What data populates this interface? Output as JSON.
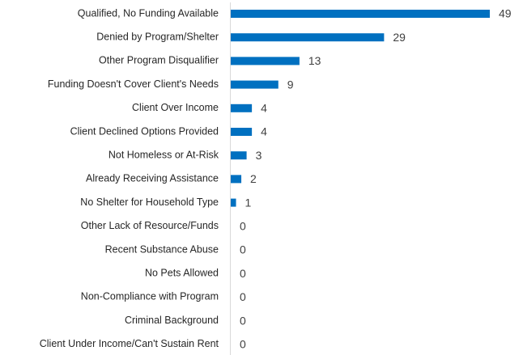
{
  "chart_data": {
    "type": "bar",
    "orientation": "horizontal",
    "categories": [
      "Qualified, No Funding Available",
      "Denied by Program/Shelter",
      "Other Program Disqualifier",
      "Funding Doesn't Cover Client's Needs",
      "Client Over Income",
      "Client Declined Options Provided",
      "Not Homeless or At-Risk",
      "Already Receiving Assistance",
      "No Shelter for Household Type",
      "Other Lack of Resource/Funds",
      "Recent Substance Abuse",
      "No Pets Allowed",
      "Non-Compliance with Program",
      "Criminal Background",
      "Client Under Income/Can't Sustain Rent"
    ],
    "values": [
      49,
      29,
      13,
      9,
      4,
      4,
      3,
      2,
      1,
      0,
      0,
      0,
      0,
      0,
      0
    ],
    "color": "#0070c0"
  }
}
